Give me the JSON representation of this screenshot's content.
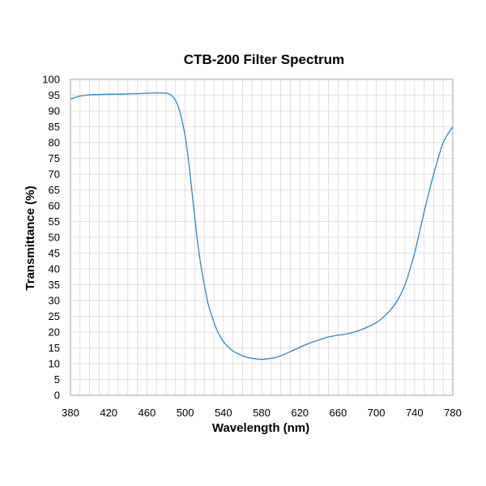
{
  "chart_data": {
    "type": "line",
    "title": "CTB-200 Filter Spectrum",
    "xlabel": "Wavelength (nm)",
    "ylabel": "Transmittance (%)",
    "xlim": [
      380,
      780
    ],
    "ylim": [
      0,
      100
    ],
    "x_ticks": [
      380,
      420,
      460,
      500,
      540,
      580,
      620,
      660,
      700,
      740,
      780
    ],
    "y_ticks": [
      0,
      5,
      10,
      15,
      20,
      25,
      30,
      35,
      40,
      45,
      50,
      55,
      60,
      65,
      70,
      75,
      80,
      85,
      90,
      95,
      100
    ],
    "grid": true,
    "legend": "none",
    "series": [
      {
        "color": "#2e86c1",
        "x": [
          380,
          390,
          400,
          410,
          420,
          430,
          440,
          450,
          460,
          470,
          480,
          484,
          488,
          492,
          496,
          500,
          504,
          508,
          512,
          516,
          520,
          524,
          528,
          532,
          536,
          540,
          545,
          550,
          555,
          560,
          565,
          570,
          575,
          580,
          585,
          590,
          595,
          600,
          610,
          620,
          630,
          640,
          650,
          660,
          670,
          680,
          690,
          700,
          710,
          720,
          730,
          740,
          750,
          760,
          770,
          780
        ],
        "y": [
          93.8,
          94.7,
          95.1,
          95.2,
          95.3,
          95.3,
          95.4,
          95.5,
          95.6,
          95.7,
          95.6,
          95.3,
          94.2,
          92.0,
          88.0,
          82.0,
          73.0,
          62.0,
          51.0,
          42.0,
          35.0,
          29.0,
          25.0,
          21.5,
          19.0,
          17.0,
          15.3,
          14.0,
          13.2,
          12.5,
          12.0,
          11.7,
          11.5,
          11.4,
          11.5,
          11.7,
          12.0,
          12.5,
          13.8,
          15.2,
          16.5,
          17.5,
          18.5,
          19.0,
          19.5,
          20.3,
          21.5,
          23.0,
          25.5,
          29.0,
          35.0,
          45.0,
          58.0,
          70.0,
          80.0,
          85.0
        ]
      }
    ]
  }
}
